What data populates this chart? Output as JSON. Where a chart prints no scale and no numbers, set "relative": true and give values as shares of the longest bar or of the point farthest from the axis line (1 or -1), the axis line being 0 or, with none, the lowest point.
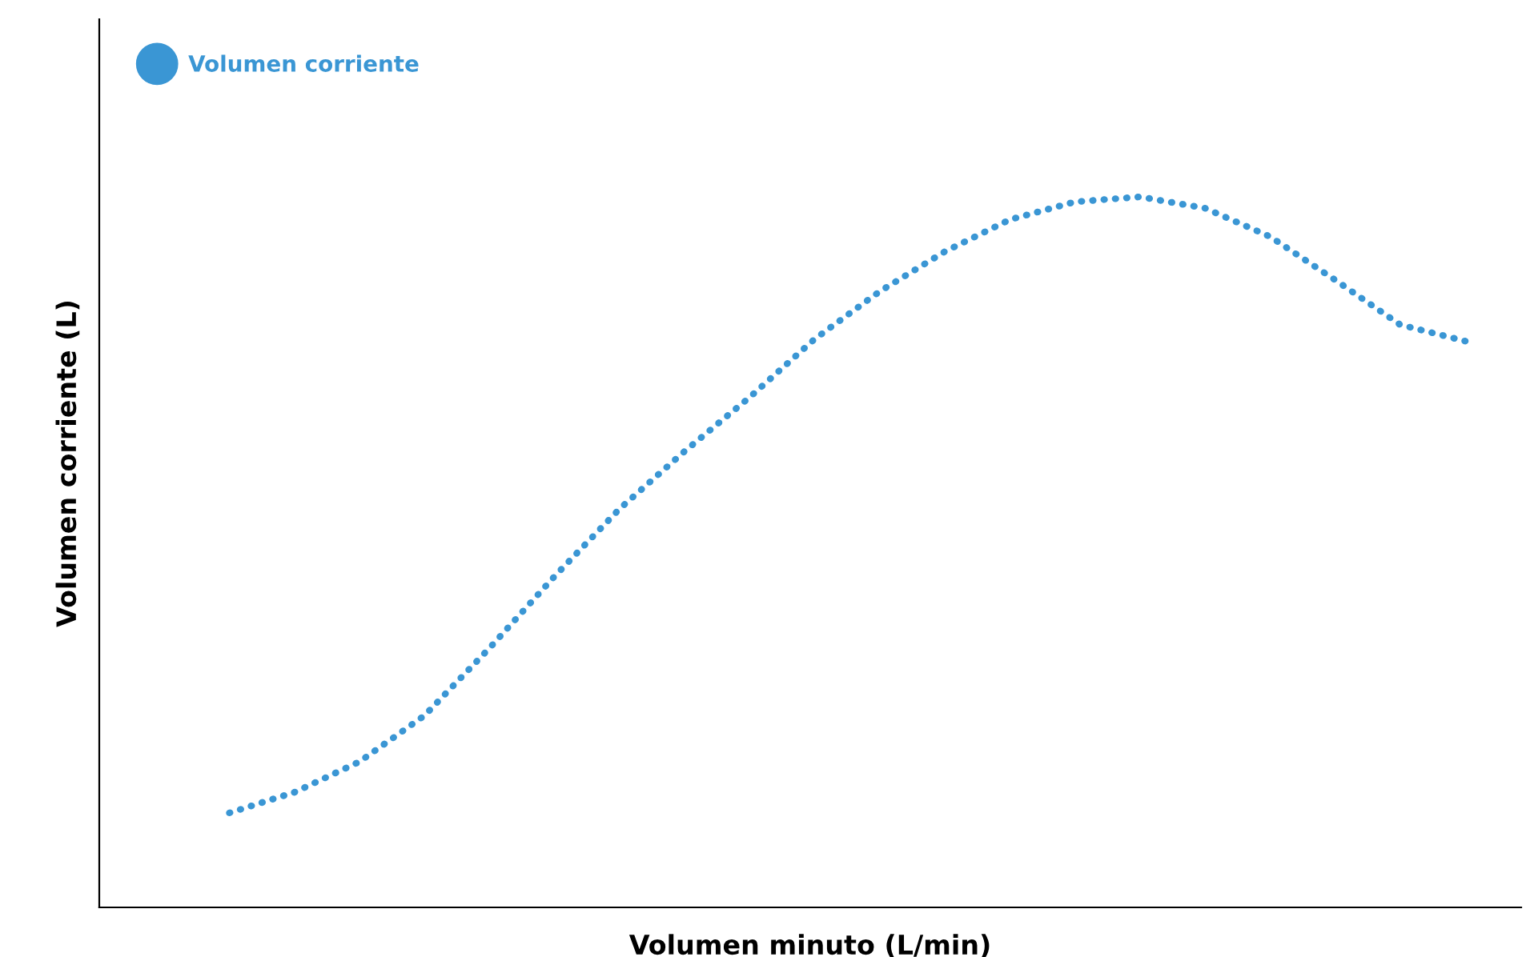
{
  "chart_data": {
    "type": "line",
    "relative": true,
    "xlabel": "Volumen minuto (L/min)",
    "ylabel": "Volumen corriente (L)",
    "categories": [
      null,
      null,
      null,
      null,
      null,
      null,
      null,
      null,
      null,
      null,
      null,
      null,
      null,
      null,
      null,
      null,
      null,
      null,
      null,
      null
    ],
    "series": [
      {
        "name": "Volumen corriente",
        "color": "#3a96d4",
        "values": [
          0.133,
          0.162,
          0.205,
          0.27,
          0.365,
          0.466,
          0.561,
          0.642,
          0.718,
          0.8,
          0.867,
          0.923,
          0.968,
          0.993,
          1,
          0.984,
          0.944,
          0.883,
          0.82,
          0.797
        ]
      }
    ],
    "line_style": "dotted",
    "marker": "none",
    "legend": "top left",
    "grid": false,
    "tick_labels": false
  }
}
